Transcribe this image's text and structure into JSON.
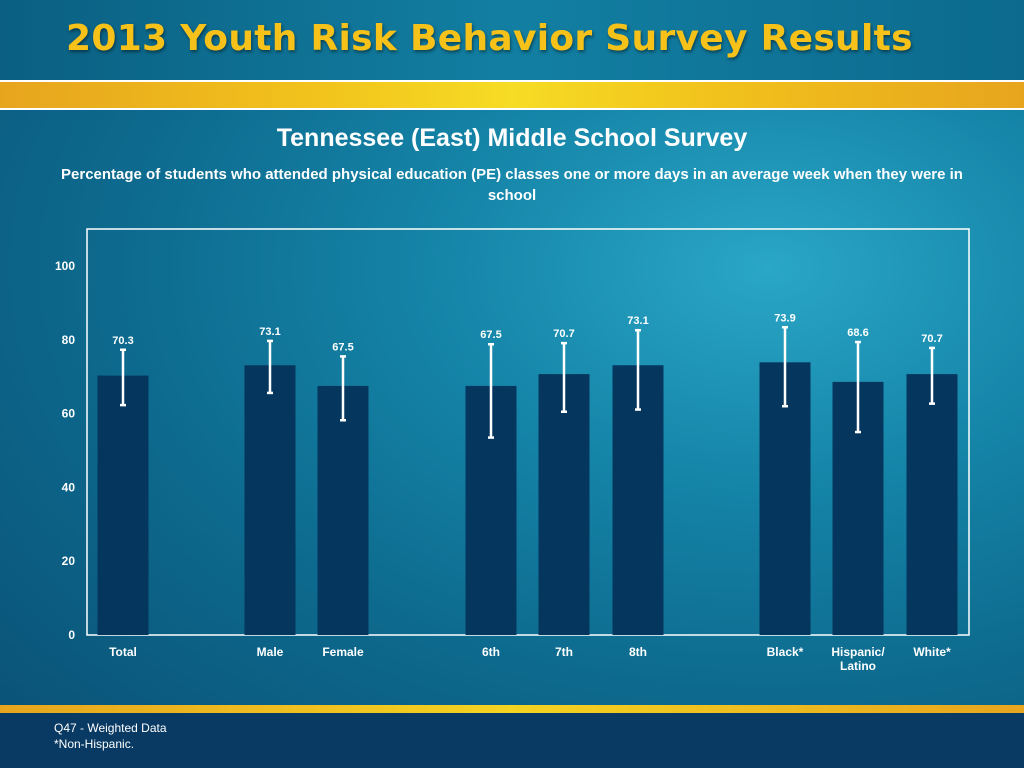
{
  "header": {
    "title": "2013 Youth Risk Behavior Survey Results"
  },
  "chart_data": {
    "type": "bar",
    "title": "Tennessee (East) Middle School Survey",
    "subtitle": "Percentage of students who attended physical education (PE) classes one or more days in an average week when they were in school",
    "categories": [
      "Total",
      "Male",
      "Female",
      "6th",
      "7th",
      "8th",
      "Black*",
      "Hispanic/ Latino",
      "White*"
    ],
    "category_lines": [
      [
        "Total"
      ],
      [
        "Male"
      ],
      [
        "Female"
      ],
      [
        "6th"
      ],
      [
        "7th"
      ],
      [
        "8th"
      ],
      [
        "Black*"
      ],
      [
        "Hispanic/",
        "Latino"
      ],
      [
        "White*"
      ]
    ],
    "values": [
      70.3,
      73.1,
      67.5,
      67.5,
      70.7,
      73.1,
      73.9,
      68.6,
      70.7
    ],
    "value_labels": [
      "70.3",
      "73.1",
      "67.5",
      "67.5",
      "70.7",
      "73.1",
      "73.9",
      "68.6",
      "70.7"
    ],
    "ci_low": [
      62.3,
      65.6,
      58.2,
      53.5,
      60.5,
      61.1,
      62.0,
      55.0,
      62.7
    ],
    "ci_high": [
      77.3,
      79.7,
      75.5,
      78.8,
      79.1,
      82.6,
      83.4,
      79.4,
      77.8
    ],
    "groups": [
      [
        0
      ],
      [
        1,
        2
      ],
      [
        3,
        4,
        5
      ],
      [
        6,
        7,
        8
      ]
    ],
    "ylim": [
      0,
      110
    ],
    "yticks": [
      0,
      20,
      40,
      60,
      80,
      100
    ],
    "grid": false,
    "bar_color": "#05365e",
    "errorbar_color": "#ffffff"
  },
  "footer": {
    "note1": "Q47 - Weighted Data",
    "note2": "*Non-Hispanic."
  }
}
